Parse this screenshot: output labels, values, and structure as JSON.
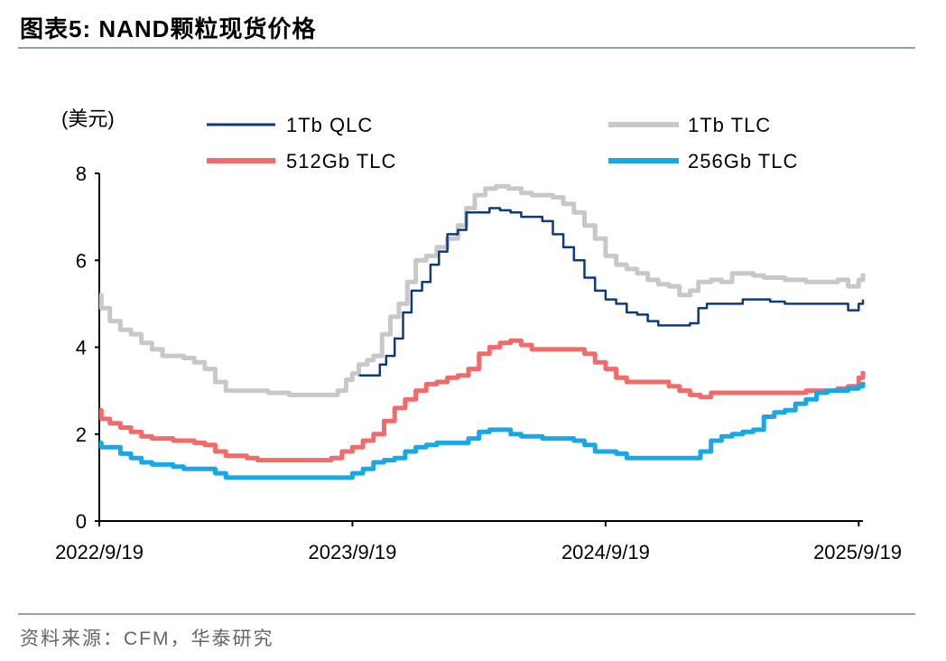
{
  "header": {
    "title": "图表5:   NAND颗粒现货价格"
  },
  "footer": {
    "source": "资料来源：CFM，华泰研究"
  },
  "colors": {
    "qlc1tb": "#0f3a7a",
    "tlc1tb": "#c8c8c8",
    "tlc512gb": "#f26a6a",
    "tlc256gb": "#19a7e6"
  },
  "chart_data": {
    "type": "line",
    "title": "NAND颗粒现货价格",
    "unit_label": "(美元)",
    "ylim": [
      0,
      8
    ],
    "yticks": [
      "0",
      "2",
      "4",
      "6",
      "8"
    ],
    "xlim": [
      0,
      36.2
    ],
    "xticks": [
      {
        "label": "2022/9/19",
        "x": 0
      },
      {
        "label": "2023/9/19",
        "x": 12
      },
      {
        "label": "2024/9/19",
        "x": 24
      },
      {
        "label": "2025/9/19",
        "x": 36
      }
    ],
    "series": [
      {
        "name": "1Tb QLC",
        "color": "#0f3a7a",
        "points": [
          [
            12.3,
            3.35
          ],
          [
            13.0,
            3.35
          ],
          [
            13.3,
            3.6
          ],
          [
            13.6,
            3.8
          ],
          [
            14.0,
            4.2
          ],
          [
            14.4,
            4.8
          ],
          [
            14.8,
            5.3
          ],
          [
            15.3,
            5.5
          ],
          [
            15.7,
            5.9
          ],
          [
            16.1,
            6.2
          ],
          [
            16.5,
            6.6
          ],
          [
            17.0,
            6.7
          ],
          [
            17.4,
            7.1
          ],
          [
            18.0,
            7.1
          ],
          [
            18.5,
            7.2
          ],
          [
            19.0,
            7.15
          ],
          [
            19.5,
            7.1
          ],
          [
            20.0,
            7.0
          ],
          [
            20.5,
            7.0
          ],
          [
            21.0,
            6.9
          ],
          [
            21.5,
            6.6
          ],
          [
            22.0,
            6.3
          ],
          [
            22.5,
            6.0
          ],
          [
            23.0,
            5.6
          ],
          [
            23.5,
            5.3
          ],
          [
            24.0,
            5.1
          ],
          [
            24.5,
            5.0
          ],
          [
            25.0,
            4.8
          ],
          [
            25.5,
            4.75
          ],
          [
            26.0,
            4.6
          ],
          [
            26.5,
            4.5
          ],
          [
            27.5,
            4.5
          ],
          [
            28.0,
            4.55
          ],
          [
            28.4,
            4.9
          ],
          [
            28.8,
            5.0
          ],
          [
            29.5,
            5.0
          ],
          [
            30.0,
            5.0
          ],
          [
            30.5,
            5.1
          ],
          [
            31.0,
            5.1
          ],
          [
            31.8,
            5.05
          ],
          [
            32.5,
            5.0
          ],
          [
            34.0,
            5.0
          ],
          [
            35.0,
            5.0
          ],
          [
            35.5,
            4.85
          ],
          [
            36.0,
            5.0
          ],
          [
            36.2,
            5.1
          ]
        ]
      },
      {
        "name": "1Tb TLC",
        "color": "#c8c8c8",
        "points": [
          [
            0.0,
            5.2
          ],
          [
            0.1,
            4.9
          ],
          [
            0.5,
            4.6
          ],
          [
            1.0,
            4.4
          ],
          [
            1.5,
            4.3
          ],
          [
            2.0,
            4.1
          ],
          [
            2.5,
            3.95
          ],
          [
            3.0,
            3.8
          ],
          [
            4.0,
            3.75
          ],
          [
            4.5,
            3.65
          ],
          [
            5.0,
            3.5
          ],
          [
            5.5,
            3.2
          ],
          [
            6.0,
            3.0
          ],
          [
            7.0,
            3.0
          ],
          [
            8.0,
            2.95
          ],
          [
            9.0,
            2.9
          ],
          [
            10.0,
            2.9
          ],
          [
            11.0,
            2.9
          ],
          [
            11.3,
            3.0
          ],
          [
            11.7,
            3.25
          ],
          [
            12.0,
            3.4
          ],
          [
            12.3,
            3.6
          ],
          [
            12.7,
            3.7
          ],
          [
            13.0,
            3.8
          ],
          [
            13.4,
            4.3
          ],
          [
            13.8,
            4.7
          ],
          [
            14.2,
            5.0
          ],
          [
            14.6,
            5.5
          ],
          [
            15.0,
            6.0
          ],
          [
            15.5,
            6.1
          ],
          [
            16.0,
            6.3
          ],
          [
            16.5,
            6.5
          ],
          [
            17.0,
            6.8
          ],
          [
            17.4,
            7.2
          ],
          [
            17.8,
            7.5
          ],
          [
            18.3,
            7.65
          ],
          [
            18.8,
            7.7
          ],
          [
            19.4,
            7.65
          ],
          [
            20.0,
            7.55
          ],
          [
            20.5,
            7.5
          ],
          [
            21.5,
            7.45
          ],
          [
            22.0,
            7.3
          ],
          [
            22.5,
            7.1
          ],
          [
            23.0,
            6.8
          ],
          [
            23.5,
            6.5
          ],
          [
            24.0,
            6.1
          ],
          [
            24.5,
            5.9
          ],
          [
            25.0,
            5.8
          ],
          [
            25.5,
            5.7
          ],
          [
            26.0,
            5.55
          ],
          [
            26.5,
            5.45
          ],
          [
            27.0,
            5.4
          ],
          [
            27.5,
            5.2
          ],
          [
            28.0,
            5.3
          ],
          [
            28.4,
            5.5
          ],
          [
            29.0,
            5.55
          ],
          [
            29.5,
            5.5
          ],
          [
            30.0,
            5.7
          ],
          [
            31.0,
            5.65
          ],
          [
            31.5,
            5.6
          ],
          [
            32.5,
            5.55
          ],
          [
            33.5,
            5.5
          ],
          [
            35.0,
            5.55
          ],
          [
            35.5,
            5.4
          ],
          [
            36.0,
            5.55
          ],
          [
            36.2,
            5.7
          ]
        ]
      },
      {
        "name": "512Gb TLC",
        "color": "#f26a6a",
        "points": [
          [
            0.0,
            2.55
          ],
          [
            0.1,
            2.35
          ],
          [
            0.5,
            2.25
          ],
          [
            1.0,
            2.15
          ],
          [
            1.5,
            2.05
          ],
          [
            2.0,
            1.95
          ],
          [
            2.5,
            1.9
          ],
          [
            3.0,
            1.9
          ],
          [
            3.5,
            1.85
          ],
          [
            4.5,
            1.8
          ],
          [
            5.0,
            1.75
          ],
          [
            5.5,
            1.6
          ],
          [
            6.0,
            1.5
          ],
          [
            6.5,
            1.5
          ],
          [
            7.0,
            1.45
          ],
          [
            7.5,
            1.4
          ],
          [
            8.5,
            1.4
          ],
          [
            9.5,
            1.4
          ],
          [
            10.5,
            1.4
          ],
          [
            11.0,
            1.45
          ],
          [
            11.5,
            1.6
          ],
          [
            12.0,
            1.7
          ],
          [
            12.5,
            1.85
          ],
          [
            13.0,
            2.0
          ],
          [
            13.5,
            2.3
          ],
          [
            14.0,
            2.6
          ],
          [
            14.5,
            2.8
          ],
          [
            15.0,
            3.0
          ],
          [
            15.5,
            3.15
          ],
          [
            16.0,
            3.2
          ],
          [
            16.5,
            3.3
          ],
          [
            17.0,
            3.35
          ],
          [
            17.5,
            3.5
          ],
          [
            18.0,
            3.85
          ],
          [
            18.5,
            4.0
          ],
          [
            19.0,
            4.1
          ],
          [
            19.5,
            4.15
          ],
          [
            20.0,
            4.05
          ],
          [
            20.5,
            3.95
          ],
          [
            21.5,
            3.95
          ],
          [
            22.5,
            3.95
          ],
          [
            23.0,
            3.85
          ],
          [
            23.5,
            3.65
          ],
          [
            24.0,
            3.5
          ],
          [
            24.5,
            3.3
          ],
          [
            25.0,
            3.2
          ],
          [
            26.0,
            3.2
          ],
          [
            27.0,
            3.1
          ],
          [
            27.5,
            3.0
          ],
          [
            28.0,
            2.9
          ],
          [
            28.5,
            2.85
          ],
          [
            29.0,
            2.95
          ],
          [
            30.0,
            2.95
          ],
          [
            31.0,
            2.95
          ],
          [
            32.0,
            2.95
          ],
          [
            33.0,
            2.95
          ],
          [
            33.5,
            3.0
          ],
          [
            34.5,
            3.0
          ],
          [
            35.0,
            3.05
          ],
          [
            35.5,
            3.1
          ],
          [
            36.0,
            3.3
          ],
          [
            36.2,
            3.45
          ]
        ]
      },
      {
        "name": "256Gb TLC",
        "color": "#19a7e6",
        "points": [
          [
            0.0,
            1.8
          ],
          [
            0.1,
            1.7
          ],
          [
            0.5,
            1.7
          ],
          [
            1.0,
            1.55
          ],
          [
            1.5,
            1.45
          ],
          [
            2.0,
            1.35
          ],
          [
            2.5,
            1.3
          ],
          [
            3.5,
            1.25
          ],
          [
            4.0,
            1.2
          ],
          [
            5.0,
            1.2
          ],
          [
            5.5,
            1.1
          ],
          [
            6.0,
            1.0
          ],
          [
            7.0,
            1.0
          ],
          [
            8.0,
            1.0
          ],
          [
            9.0,
            1.0
          ],
          [
            10.0,
            1.0
          ],
          [
            11.0,
            1.0
          ],
          [
            11.5,
            1.0
          ],
          [
            12.0,
            1.1
          ],
          [
            12.5,
            1.2
          ],
          [
            13.0,
            1.35
          ],
          [
            13.5,
            1.4
          ],
          [
            14.0,
            1.45
          ],
          [
            14.5,
            1.6
          ],
          [
            15.0,
            1.7
          ],
          [
            15.5,
            1.75
          ],
          [
            16.0,
            1.8
          ],
          [
            17.0,
            1.8
          ],
          [
            17.5,
            1.9
          ],
          [
            18.0,
            2.05
          ],
          [
            18.5,
            2.1
          ],
          [
            19.0,
            2.1
          ],
          [
            19.5,
            2.0
          ],
          [
            20.0,
            1.95
          ],
          [
            21.0,
            1.9
          ],
          [
            22.0,
            1.9
          ],
          [
            22.5,
            1.85
          ],
          [
            23.0,
            1.75
          ],
          [
            23.5,
            1.6
          ],
          [
            24.0,
            1.6
          ],
          [
            24.5,
            1.55
          ],
          [
            25.0,
            1.45
          ],
          [
            26.0,
            1.45
          ],
          [
            27.0,
            1.45
          ],
          [
            28.0,
            1.45
          ],
          [
            28.5,
            1.6
          ],
          [
            29.0,
            1.85
          ],
          [
            29.5,
            1.95
          ],
          [
            30.0,
            2.0
          ],
          [
            30.5,
            2.05
          ],
          [
            31.0,
            2.1
          ],
          [
            31.5,
            2.4
          ],
          [
            32.0,
            2.5
          ],
          [
            32.5,
            2.55
          ],
          [
            33.0,
            2.7
          ],
          [
            33.5,
            2.8
          ],
          [
            34.0,
            2.95
          ],
          [
            34.5,
            3.0
          ],
          [
            35.0,
            3.0
          ],
          [
            35.5,
            3.05
          ],
          [
            36.0,
            3.1
          ],
          [
            36.2,
            3.2
          ]
        ]
      }
    ]
  }
}
